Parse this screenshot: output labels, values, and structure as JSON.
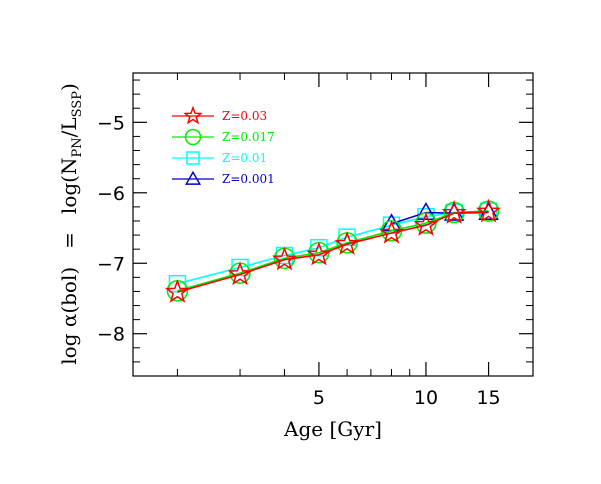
{
  "chart_data": {
    "type": "line",
    "xlabel": "Age [Gyr]",
    "ylabel_left": "log  α(bol)",
    "ylabel_eq": "=",
    "ylabel_right": "log(N",
    "ylabel_sub1": "PN",
    "ylabel_mid": "/L",
    "ylabel_sub2": "SSP",
    "ylabel_end": ")",
    "x_scale": "log",
    "xlim": [
      1.5,
      20
    ],
    "ylim": [
      -8.6,
      -4.3
    ],
    "x_tick_labels": [
      {
        "value": 5,
        "label": "5"
      },
      {
        "value": 10,
        "label": "10"
      },
      {
        "value": 15,
        "label": "15"
      }
    ],
    "x_minor_ticks": [
      2,
      3,
      4,
      6,
      7,
      8,
      9,
      20
    ],
    "y_tick_labels": [
      {
        "value": -5,
        "label": "−5"
      },
      {
        "value": -6,
        "label": "−6"
      },
      {
        "value": -7,
        "label": "−7"
      },
      {
        "value": -8,
        "label": "−8"
      }
    ],
    "y_minor_step": 0.2,
    "legend_position": "top-left",
    "series": [
      {
        "name": "Z=0.03",
        "color": "#ff0000",
        "marker": "star",
        "x": [
          2,
          3,
          4,
          5,
          6,
          8,
          10,
          12,
          15
        ],
        "y": [
          -7.41,
          -7.16,
          -6.95,
          -6.88,
          -6.73,
          -6.57,
          -6.46,
          -6.29,
          -6.27
        ]
      },
      {
        "name": "Z=0.017",
        "color": "#00ee00",
        "marker": "circle",
        "x": [
          2,
          3,
          4,
          5,
          6,
          8,
          10,
          12,
          15
        ],
        "y": [
          -7.39,
          -7.14,
          -6.93,
          -6.85,
          -6.71,
          -6.54,
          -6.43,
          -6.28,
          -6.26
        ]
      },
      {
        "name": "Z=0.01",
        "color": "#00ffff",
        "marker": "square",
        "x": [
          2,
          3,
          4,
          5,
          6,
          8,
          10,
          12,
          15
        ],
        "y": [
          -7.29,
          -7.06,
          -6.89,
          -6.78,
          -6.63,
          -6.46,
          -6.34,
          -6.28,
          -6.26
        ]
      },
      {
        "name": "Z=0.001",
        "color": "#0000cc",
        "marker": "triangle",
        "x": [
          8,
          10,
          12,
          15
        ],
        "y": [
          -6.44,
          -6.28,
          -6.29,
          -6.28
        ]
      }
    ]
  }
}
